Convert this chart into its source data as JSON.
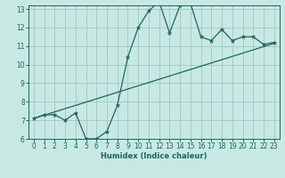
{
  "xlabel": "Humidex (Indice chaleur)",
  "bg_color": "#c8e8e4",
  "grid_color": "#a0c8c4",
  "line_color": "#1a6660",
  "xlim": [
    -0.5,
    23.5
  ],
  "ylim": [
    6,
    13.2
  ],
  "yticks": [
    6,
    7,
    8,
    9,
    10,
    11,
    12,
    13
  ],
  "xticks": [
    0,
    1,
    2,
    3,
    4,
    5,
    6,
    7,
    8,
    9,
    10,
    11,
    12,
    13,
    14,
    15,
    16,
    17,
    18,
    19,
    20,
    21,
    22,
    23
  ],
  "data_x": [
    0,
    1,
    2,
    3,
    4,
    5,
    6,
    7,
    8,
    9,
    10,
    11,
    12,
    13,
    14,
    15,
    16,
    17,
    18,
    19,
    20,
    21,
    22,
    23
  ],
  "data_y": [
    7.1,
    7.3,
    7.3,
    7.0,
    7.4,
    6.0,
    6.0,
    6.4,
    7.8,
    10.4,
    12.0,
    12.9,
    13.4,
    11.7,
    13.2,
    13.3,
    11.5,
    11.3,
    11.9,
    11.3,
    11.5,
    11.5,
    11.1,
    11.2
  ],
  "trend_x": [
    0,
    23
  ],
  "trend_y": [
    7.1,
    11.15
  ]
}
